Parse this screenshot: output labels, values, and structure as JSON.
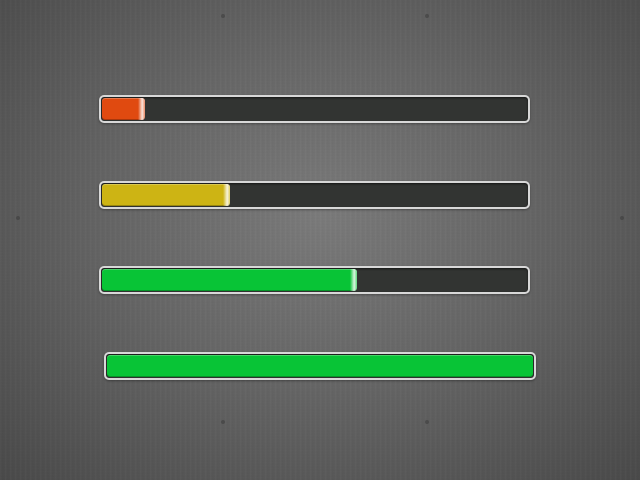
{
  "progress_bars": [
    {
      "id": "bar-1",
      "progress": 0.1,
      "fill_color": "#e04a10"
    },
    {
      "id": "bar-2",
      "progress": 0.3,
      "fill_color": "#cdb414"
    },
    {
      "id": "bar-3",
      "progress": 0.6,
      "fill_color": "#08c436"
    },
    {
      "id": "bar-4",
      "progress": 1.0,
      "fill_color": "#08c436"
    }
  ],
  "colors": {
    "track": "#323432",
    "border": "#d8d8d8",
    "background": "#6e6e6e"
  }
}
